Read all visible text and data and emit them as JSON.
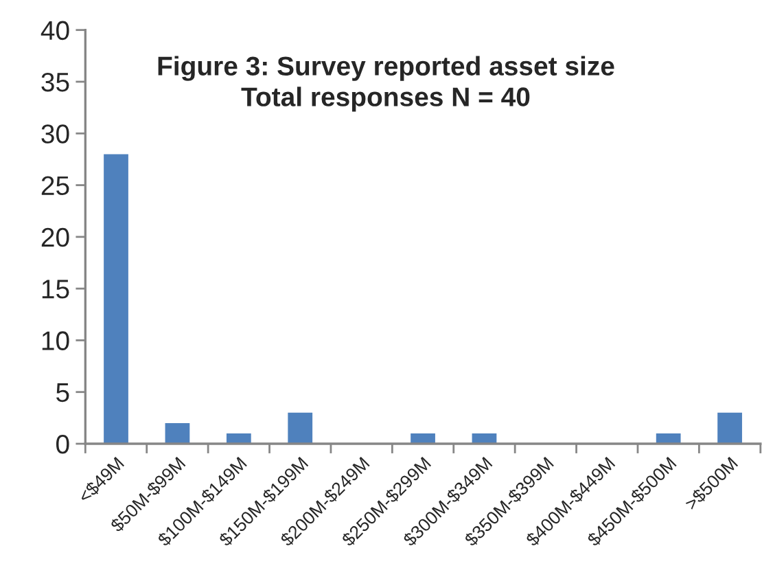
{
  "chart_data": {
    "type": "bar",
    "title": "Figure 3: Survey reported asset size\nTotal responses N = 40",
    "categories": [
      "<$49M",
      "$50M-$99M",
      "$100M-$149M",
      "$150M-$199M",
      "$200M-$249M",
      "$250M-$299M",
      "$300M-$349M",
      "$350M-$399M",
      "$400M-$449M",
      "$450M-$500M",
      ">$500M"
    ],
    "values": [
      28,
      2,
      1,
      3,
      0,
      1,
      1,
      0,
      0,
      1,
      3
    ],
    "color": "#4f81bd",
    "ylim": [
      0,
      40
    ],
    "yticks": [
      0,
      5,
      10,
      15,
      20,
      25,
      30,
      35,
      40
    ]
  }
}
